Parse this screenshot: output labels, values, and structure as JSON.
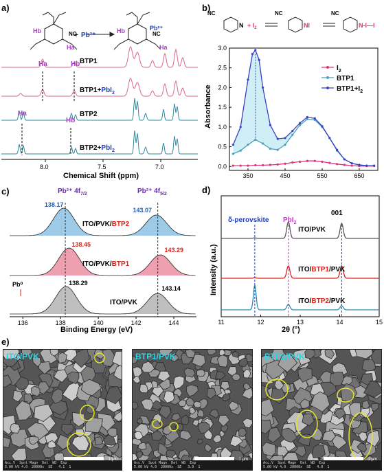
{
  "panel_a": {
    "label": "a)",
    "reaction": {
      "plus": "+",
      "reagent": "Pb²⁺",
      "product_charge": "Pb²⁺",
      "substituent": "NC",
      "ha": "Ha",
      "hb": "Hb"
    },
    "traces": [
      {
        "name": "BTP1",
        "color": "#d9668a"
      },
      {
        "name": "BTP1+",
        "suffix": "PbI",
        "sub": "2",
        "color": "#d9668a"
      },
      {
        "name": "BTP2",
        "color": "#2c8a9e"
      },
      {
        "name": "BTP2+",
        "suffix": "PbI",
        "sub": "2",
        "color": "#2c8a9e"
      }
    ],
    "peak_labels": {
      "ha": "Ha",
      "hb": "Hb"
    },
    "xticks": [
      "8.0",
      "7.5",
      "7.0"
    ],
    "xlabel": "Chemical Shift (ppm)"
  },
  "panel_b": {
    "label": "b)",
    "scheme": {
      "nc": "NC",
      "reagent": "I",
      "reagent_sub": "2",
      "n_label": "N",
      "n_i_label": "N",
      "i_label": "I",
      "i_chain": "I—I"
    },
    "chart_data": {
      "type": "line",
      "xlabel": "Wavelength (nm)",
      "ylabel": "Absorbance",
      "xlim": [
        300,
        700
      ],
      "ylim": [
        -0.1,
        3.0
      ],
      "xticks": [
        350,
        450,
        550,
        650
      ],
      "yticks": [
        "0.0",
        "0.5",
        "1.0",
        "1.5",
        "2.0",
        "2.5",
        "3.0"
      ],
      "series": [
        {
          "name": "I",
          "sub": "2",
          "color": "#e0307a",
          "x": [
            310,
            330,
            350,
            370,
            390,
            410,
            430,
            450,
            470,
            490,
            510,
            530,
            550,
            570,
            590,
            610,
            630,
            650,
            670,
            690
          ],
          "y": [
            0.02,
            0.02,
            0.02,
            0.03,
            0.03,
            0.04,
            0.05,
            0.07,
            0.1,
            0.12,
            0.14,
            0.14,
            0.12,
            0.09,
            0.06,
            0.04,
            0.02,
            0.01,
            0.01,
            0.01
          ]
        },
        {
          "name": "BTP1",
          "color": "#4aa0b8",
          "x": [
            310,
            330,
            350,
            370,
            390,
            410,
            430,
            450,
            470,
            490,
            510,
            530,
            550,
            570,
            590,
            610,
            630,
            650,
            670,
            690
          ],
          "y": [
            0.32,
            0.4,
            0.55,
            0.68,
            0.58,
            0.45,
            0.42,
            0.55,
            0.8,
            1.05,
            1.2,
            1.18,
            1.0,
            0.72,
            0.4,
            0.18,
            0.08,
            0.04,
            0.02,
            0.02
          ]
        },
        {
          "name": "BTP1+",
          "suffix": "I",
          "sub": "2",
          "color": "#3a3fc4",
          "x": [
            310,
            330,
            350,
            362,
            370,
            380,
            390,
            410,
            430,
            450,
            470,
            490,
            510,
            530,
            550,
            570,
            590,
            610,
            630,
            650,
            670,
            690
          ],
          "y": [
            0.55,
            1.0,
            2.2,
            2.85,
            2.95,
            2.7,
            2.0,
            1.05,
            0.7,
            0.72,
            0.9,
            1.1,
            1.25,
            1.22,
            1.02,
            0.72,
            0.42,
            0.18,
            0.08,
            0.04,
            0.02,
            0.02
          ]
        }
      ]
    }
  },
  "panel_c": {
    "label": "c)",
    "headers": {
      "left": "Pb²⁺ 4f",
      "left_sub": "7/2",
      "right": "Pb²⁺ 4f",
      "right_sub": "5/2"
    },
    "samples": [
      {
        "name": "ITO/PVK/",
        "highlight": "BTP2",
        "hl_color": "#e0201a",
        "color": "#4b9fd4",
        "left": "138.17",
        "right": "143.07",
        "lab_color": "#1f5fb8"
      },
      {
        "name": "ITO/PVK/",
        "highlight": "BTP1",
        "hl_color": "#e0201a",
        "color": "#e05070",
        "left": "138.45",
        "right": "143.29",
        "lab_color": "#e0201a"
      },
      {
        "name": "ITO/PVK",
        "highlight": "",
        "hl_color": "#000",
        "color": "#8a8a8a",
        "left": "138.29",
        "right": "143.14",
        "lab_color": "#000"
      }
    ],
    "pb0": "Pb⁰",
    "xticks": [
      "136",
      "138",
      "140",
      "142",
      "144"
    ],
    "xlabel": "Binding Energy (eV)"
  },
  "panel_d": {
    "label": "d)",
    "annotations": {
      "delta": "δ-perovskite",
      "pbi": "PbI",
      "pbi_sub": "2",
      "peak001": "001"
    },
    "traces": [
      {
        "pre": "ITO/PVK",
        "mid": "",
        "post": "",
        "color": "#555555"
      },
      {
        "pre": "ITO/",
        "mid": "BTP1",
        "post": "/PVK",
        "color": "#e0201a"
      },
      {
        "pre": "ITO/",
        "mid": "BTP2",
        "post": "/PVK",
        "color": "#2a8fb0"
      }
    ],
    "xticks": [
      "11",
      "12",
      "13",
      "14",
      "15"
    ],
    "xlabel": "2θ (°)",
    "ylabel": "Intensity (a.u.)"
  },
  "panel_e": {
    "label": "e)",
    "images": [
      {
        "title": "ITO/PVK",
        "info": "Acc.V  Spot Magn  Det  WD  Exp\n5.00 kV 4.0  20000x  SE   4.1  1",
        "scale": "1 μm"
      },
      {
        "title": "BTP1/PVK",
        "info": "Acc.V  Spot Magn  Det  WD  Exp\n5.00 kV 4.0  20000x  SE   3.9  1",
        "scale": "1 μm"
      },
      {
        "title": "BTP2/PVK",
        "info": "Acc.V  Spot Magn  Det  WD  Exp\n5.00 kV 4.0  20000x  SE   4.0  1",
        "scale": "1 μm"
      }
    ]
  }
}
